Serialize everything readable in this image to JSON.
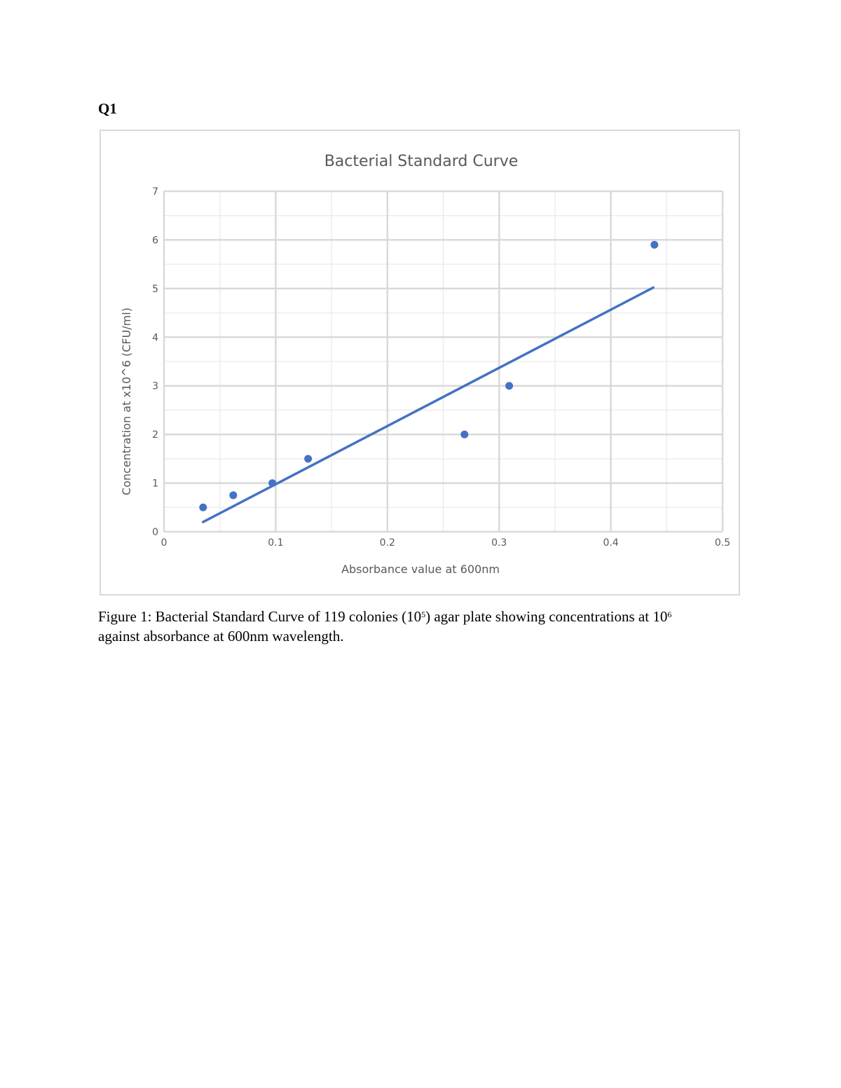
{
  "page": {
    "question_label": "Q1",
    "caption": {
      "part1": "Figure 1: Bacterial Standard Curve of 119 colonies (10",
      "sup1": "5",
      "part2": ") agar plate showing concentrations at 10",
      "sup2": "6",
      "part3": "against absorbance at 600nm wavelength."
    }
  },
  "chart_data": {
    "type": "scatter",
    "title": "Bacterial Standard Curve",
    "xlabel": "Absorbance value at 600nm",
    "ylabel": "Concentration at x10^6 (CFU/ml)",
    "xlim": [
      0,
      0.5
    ],
    "ylim": [
      0,
      7
    ],
    "x_ticks": [
      "0",
      "0.1",
      "0.2",
      "0.3",
      "0.4",
      "0.5"
    ],
    "y_ticks": [
      "0",
      "1",
      "2",
      "3",
      "4",
      "5",
      "6",
      "7"
    ],
    "grid": true,
    "legend": "none",
    "series": [
      {
        "points": [
          {
            "x": 0.035,
            "y": 0.5
          },
          {
            "x": 0.062,
            "y": 0.75
          },
          {
            "x": 0.097,
            "y": 1.0
          },
          {
            "x": 0.129,
            "y": 1.5
          },
          {
            "x": 0.269,
            "y": 2.0
          },
          {
            "x": 0.309,
            "y": 3.0
          },
          {
            "x": 0.439,
            "y": 5.9
          }
        ],
        "color": "#4472c4"
      }
    ],
    "trendline": {
      "type": "linear",
      "from": {
        "x": 0.035,
        "y": 0.2
      },
      "to": {
        "x": 0.438,
        "y": 5.02
      },
      "color": "#4472c4"
    }
  }
}
